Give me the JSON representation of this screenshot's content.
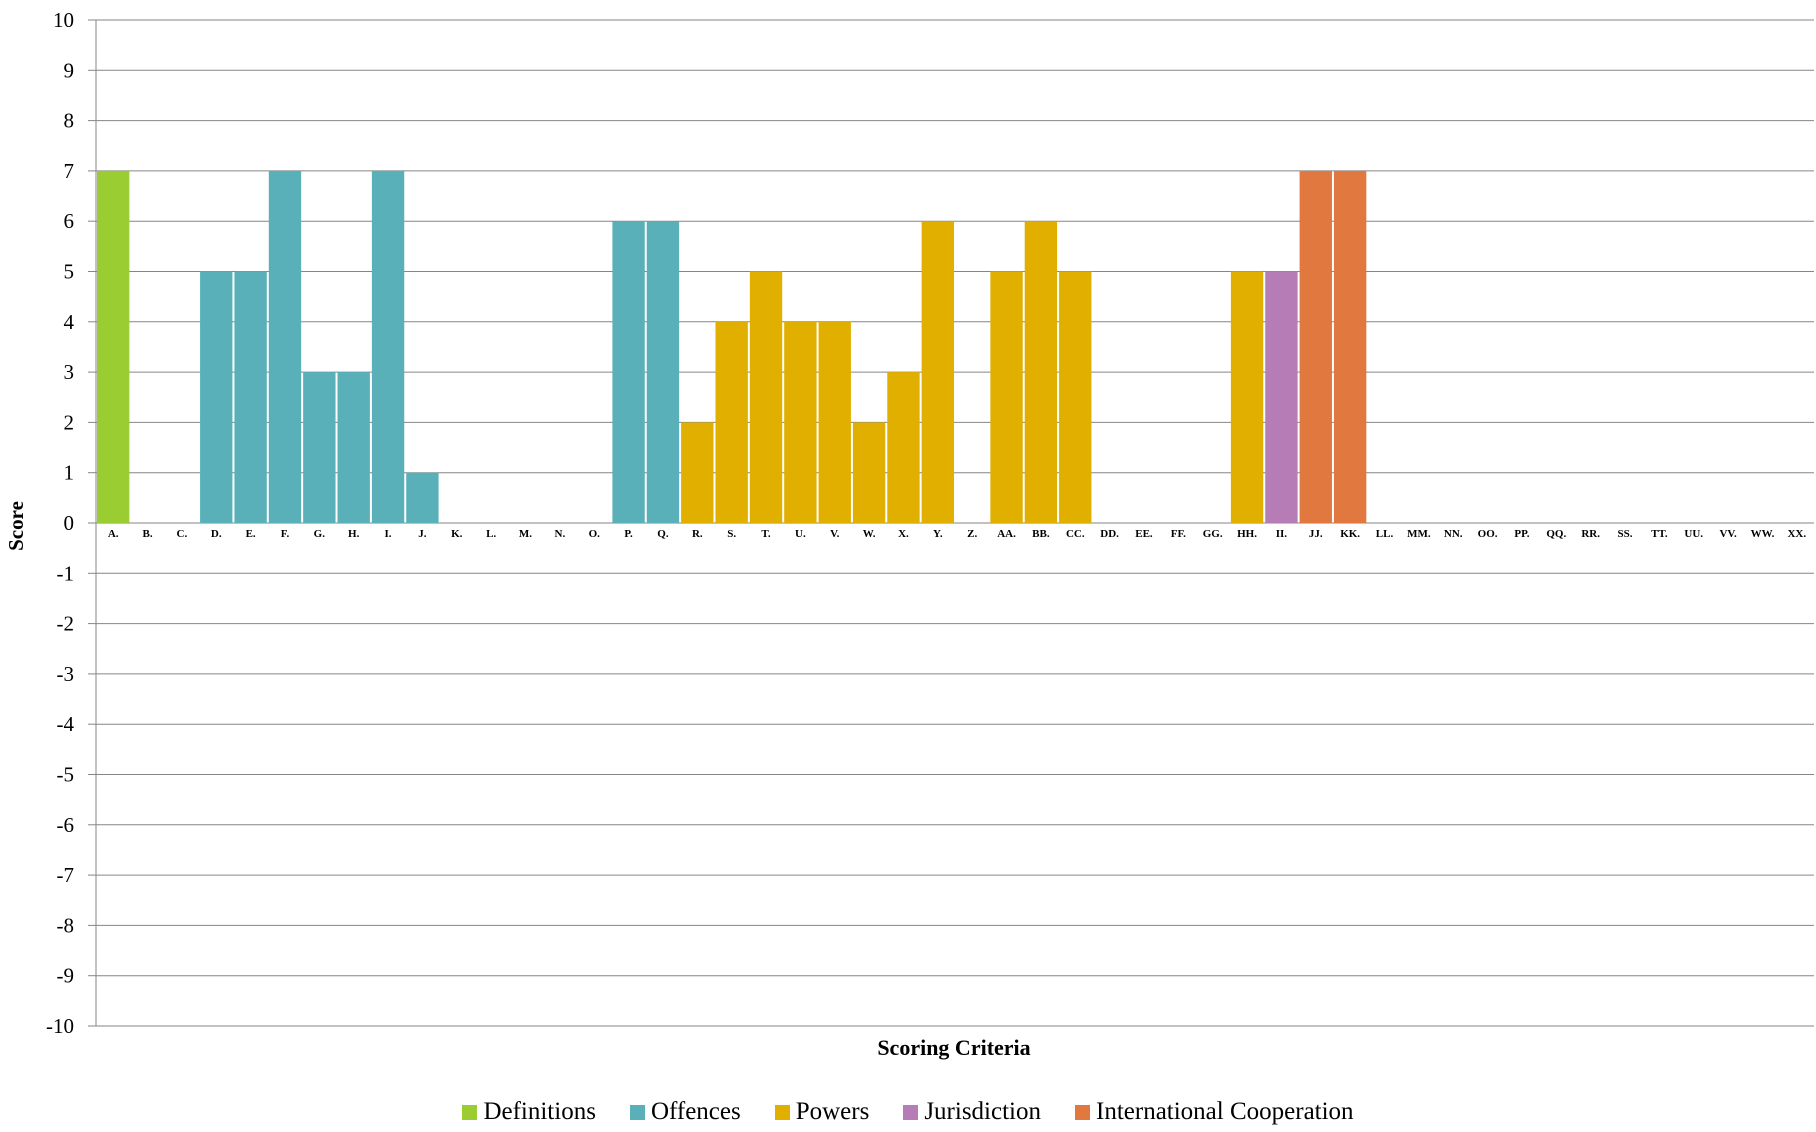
{
  "chart_data": {
    "type": "bar",
    "xlabel": "Scoring Criteria",
    "ylabel": "Score",
    "ylim": [
      -10,
      10
    ],
    "yticks": [
      10,
      9,
      8,
      7,
      6,
      5,
      4,
      3,
      2,
      1,
      0,
      -1,
      -2,
      -3,
      -4,
      -5,
      -6,
      -7,
      -8,
      -9,
      -10
    ],
    "grid": true,
    "legend_position": "bottom",
    "categories": [
      "A.",
      "B.",
      "C.",
      "D.",
      "E.",
      "F.",
      "G.",
      "H.",
      "I.",
      "J.",
      "K.",
      "L.",
      "M.",
      "N.",
      "O.",
      "P.",
      "Q.",
      "R.",
      "S.",
      "T.",
      "U.",
      "V.",
      "W.",
      "X.",
      "Y.",
      "Z.",
      "AA.",
      "BB.",
      "CC.",
      "DD.",
      "EE.",
      "FF.",
      "GG.",
      "HH.",
      "II.",
      "JJ.",
      "KK.",
      "LL.",
      "MM.",
      "NN.",
      "OO.",
      "PP.",
      "QQ.",
      "RR.",
      "SS.",
      "TT.",
      "UU.",
      "VV.",
      "WW.",
      "XX."
    ],
    "values": [
      7,
      0,
      0,
      5,
      5,
      7,
      3,
      3,
      7,
      1,
      0,
      0,
      0,
      0,
      0,
      6,
      6,
      2,
      4,
      5,
      4,
      4,
      2,
      3,
      6,
      0,
      5,
      6,
      5,
      0,
      0,
      0,
      0,
      5,
      5,
      7,
      7,
      0,
      0,
      0,
      0,
      0,
      0,
      0,
      0,
      0,
      0,
      0,
      0,
      0
    ],
    "bar_groups": [
      "Definitions",
      null,
      null,
      "Offences",
      "Offences",
      "Offences",
      "Offences",
      "Offences",
      "Offences",
      "Offences",
      null,
      null,
      null,
      null,
      null,
      "Offences",
      "Offences",
      "Powers",
      "Powers",
      "Powers",
      "Powers",
      "Powers",
      "Powers",
      "Powers",
      "Powers",
      null,
      "Powers",
      "Powers",
      "Powers",
      null,
      null,
      null,
      null,
      "Powers",
      "Jurisdiction",
      "International Cooperation",
      "International Cooperation",
      null,
      null,
      null,
      null,
      null,
      null,
      null,
      null,
      null,
      null,
      null,
      null,
      null
    ],
    "series": [
      {
        "name": "Definitions",
        "color": "#9ACD32"
      },
      {
        "name": "Offences",
        "color": "#5AB0B8"
      },
      {
        "name": "Powers",
        "color": "#E0AF00"
      },
      {
        "name": "Jurisdiction",
        "color": "#B57CB5"
      },
      {
        "name": "International Cooperation",
        "color": "#E0783F"
      }
    ]
  }
}
